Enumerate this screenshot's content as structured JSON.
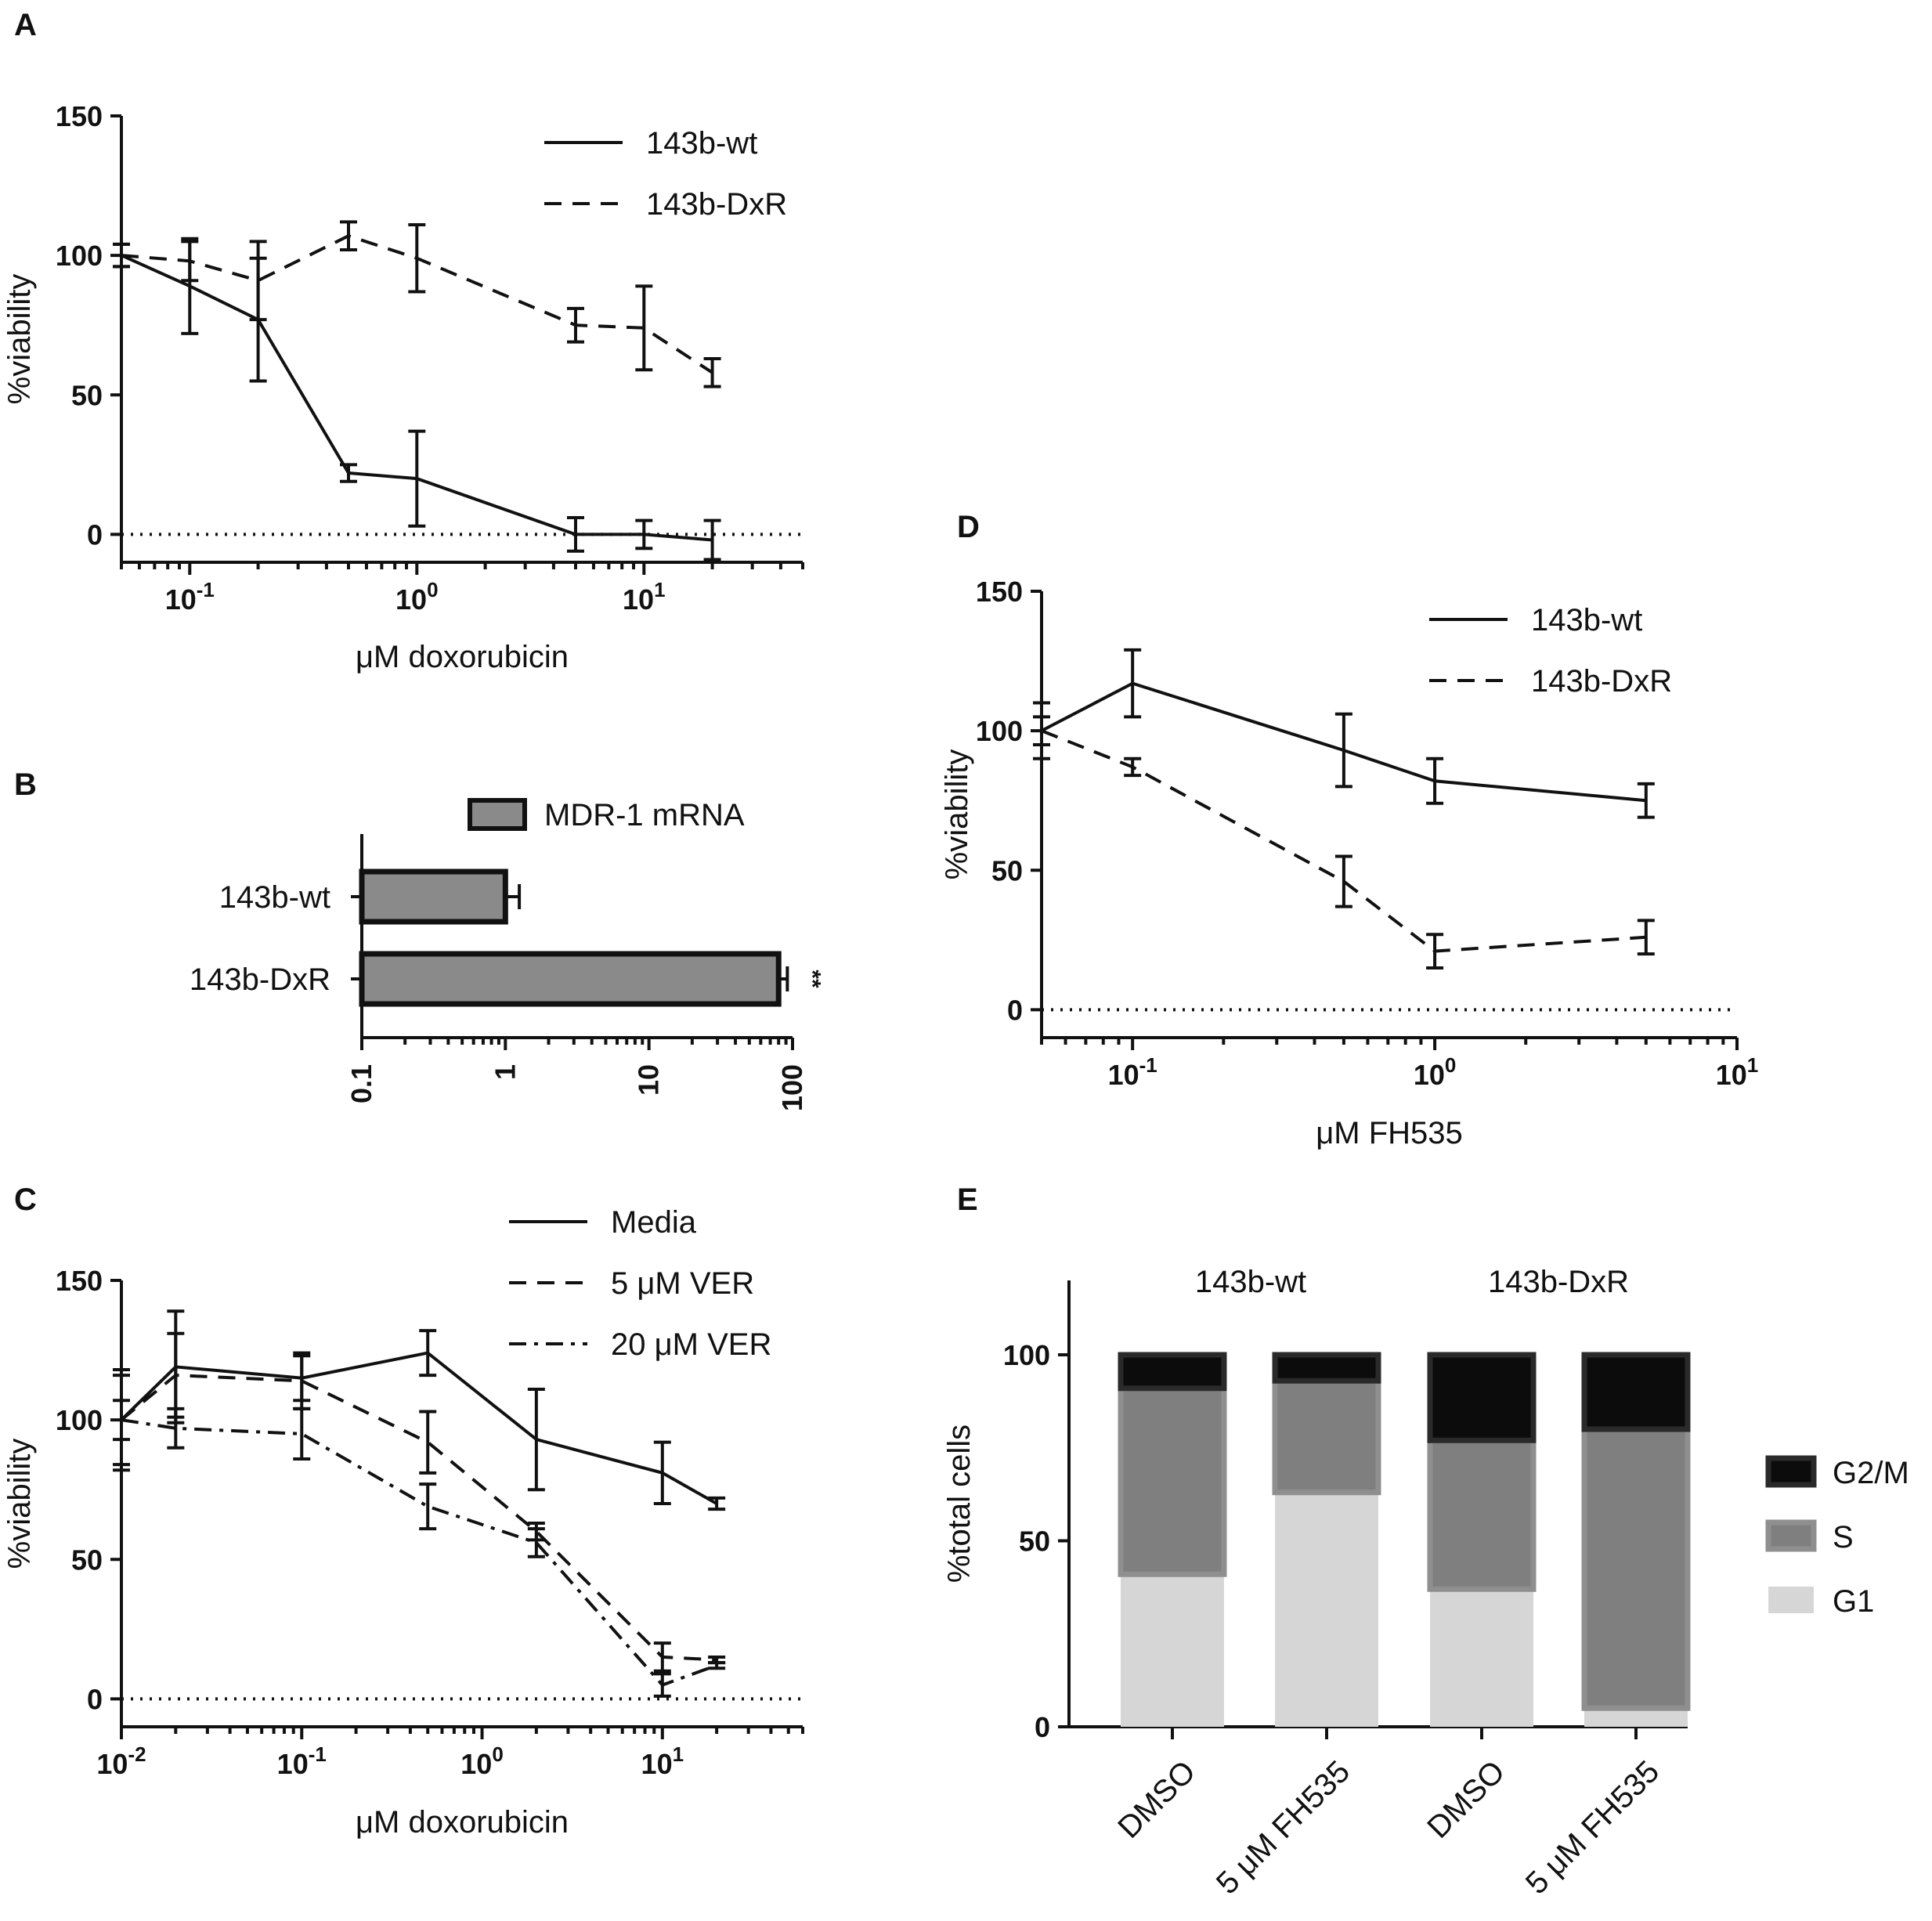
{
  "chart_data": [
    {
      "id": "A",
      "panel_label": "A",
      "type": "line",
      "x_scale": "log",
      "xlim": [
        0.05,
        50
      ],
      "ylim": [
        -10,
        150
      ],
      "yticks": [
        "0",
        "50",
        "100",
        "150"
      ],
      "xticks": [
        {
          "base": "10",
          "exp": "-1",
          "value": 0.1
        },
        {
          "base": "10",
          "exp": "0",
          "value": 1
        },
        {
          "base": "10",
          "exp": "1",
          "value": 10
        }
      ],
      "xlabel": "μM doxorubicin",
      "ylabel": "%viability",
      "legend": "top-right",
      "series": [
        {
          "name": "143b-wt",
          "style": "solid",
          "x": [
            0.05,
            0.1,
            0.2,
            0.5,
            1,
            5,
            10,
            20
          ],
          "y": [
            100,
            89,
            77,
            22,
            20,
            0,
            0,
            -2
          ],
          "err": [
            4,
            17,
            22,
            3,
            17,
            6,
            5,
            7
          ]
        },
        {
          "name": "143b-DxR",
          "style": "dash",
          "x": [
            0.05,
            0.1,
            0.2,
            0.5,
            1,
            5,
            10,
            20
          ],
          "y": [
            100,
            98,
            91,
            107,
            99,
            75,
            74,
            58
          ],
          "err": [
            4,
            7,
            14,
            5,
            12,
            6,
            15,
            5
          ]
        }
      ]
    },
    {
      "id": "B",
      "panel_label": "B",
      "type": "bar",
      "orientation": "horizontal",
      "x_scale": "log",
      "xlim": [
        0.1,
        100
      ],
      "xticks": [
        "0.1",
        "1",
        "10",
        "100"
      ],
      "categories": [
        "143b-wt",
        "143b-DxR"
      ],
      "series": [
        {
          "name": "MDR-1 mRNA",
          "values": [
            1,
            80
          ],
          "err": [
            0.25,
            12
          ]
        }
      ],
      "annotations": [
        "",
        "**"
      ],
      "legend": "top",
      "bar_color": "#8a8a8a"
    },
    {
      "id": "C",
      "panel_label": "C",
      "type": "line",
      "x_scale": "log",
      "xlim": [
        0.01,
        60
      ],
      "ylim": [
        -10,
        150
      ],
      "yticks": [
        "0",
        "50",
        "100",
        "150"
      ],
      "xticks": [
        {
          "base": "10",
          "exp": "-2",
          "value": 0.01
        },
        {
          "base": "10",
          "exp": "-1",
          "value": 0.1
        },
        {
          "base": "10",
          "exp": "0",
          "value": 1
        },
        {
          "base": "10",
          "exp": "1",
          "value": 10
        }
      ],
      "xlabel": "μM doxorubicin",
      "ylabel": "%viability",
      "legend": "top-right",
      "series": [
        {
          "name": "Media",
          "style": "solid",
          "x": [
            0.01,
            0.02,
            0.1,
            0.5,
            2,
            10,
            20
          ],
          "y": [
            100,
            119,
            115,
            124,
            93,
            81,
            70
          ],
          "err": [
            18,
            20,
            8,
            8,
            18,
            11,
            2
          ]
        },
        {
          "name": "5 μM VER",
          "style": "dash",
          "x": [
            0.01,
            0.02,
            0.1,
            0.5,
            2,
            10,
            20
          ],
          "y": [
            100,
            116,
            114,
            92,
            60,
            15,
            14
          ],
          "err": [
            7,
            15,
            10,
            11,
            3,
            5,
            1
          ]
        },
        {
          "name": "20 μM VER",
          "style": "dashdot",
          "x": [
            0.01,
            0.02,
            0.1,
            0.5,
            2,
            10,
            20
          ],
          "y": [
            100,
            97,
            95,
            69,
            56,
            5,
            12
          ],
          "err": [
            16,
            7,
            9,
            8,
            5,
            4,
            1
          ]
        }
      ]
    },
    {
      "id": "D",
      "panel_label": "D",
      "type": "line",
      "x_scale": "log",
      "xlim": [
        0.05,
        10
      ],
      "ylim": [
        -10,
        150
      ],
      "yticks": [
        "0",
        "50",
        "100",
        "150"
      ],
      "xticks": [
        {
          "base": "10",
          "exp": "-1",
          "value": 0.1
        },
        {
          "base": "10",
          "exp": "0",
          "value": 1
        },
        {
          "base": "10",
          "exp": "1",
          "value": 10
        }
      ],
      "xlabel": "μM FH535",
      "ylabel": "%viability",
      "legend": "top-right",
      "series": [
        {
          "name": "143b-wt",
          "style": "solid",
          "x": [
            0.05,
            0.1,
            0.5,
            1,
            5
          ],
          "y": [
            100,
            117,
            93,
            82,
            75
          ],
          "err": [
            10,
            12,
            13,
            8,
            6
          ]
        },
        {
          "name": "143b-DxR",
          "style": "dash",
          "x": [
            0.05,
            0.1,
            0.5,
            1,
            5
          ],
          "y": [
            100,
            87,
            46,
            21,
            26
          ],
          "err": [
            5,
            3,
            9,
            6,
            6
          ]
        }
      ]
    },
    {
      "id": "E",
      "panel_label": "E",
      "type": "bar",
      "stacked": true,
      "ylim": [
        0,
        120
      ],
      "yticks": [
        "0",
        "50",
        "100"
      ],
      "categories": [
        "DMSO",
        "5 μM FH535",
        "DMSO",
        "5 μM FH535"
      ],
      "group_labels": [
        "143b-wt",
        "143b-DxR"
      ],
      "ylabel": "%total cells",
      "legend": "right",
      "series": [
        {
          "name": "G1",
          "color": "#d6d6d6",
          "values": [
            41,
            63,
            37,
            5
          ]
        },
        {
          "name": "S",
          "color": "#7f7f7f",
          "values": [
            50,
            30,
            40,
            75
          ]
        },
        {
          "name": "G2/M",
          "color": "#0c0c0c",
          "values": [
            9,
            7,
            23,
            20
          ]
        }
      ]
    }
  ]
}
